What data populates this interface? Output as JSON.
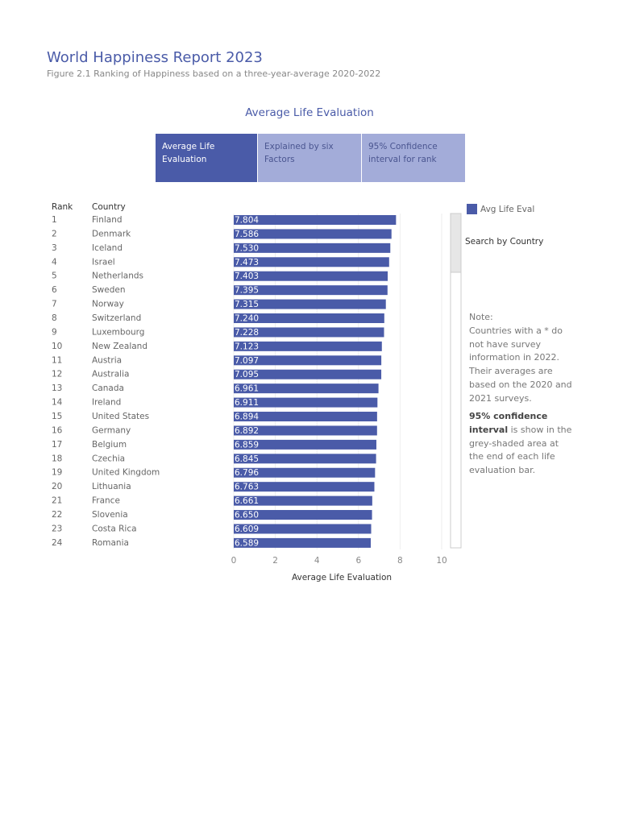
{
  "header": {
    "title": "World Happiness Report 2023",
    "subtitle": "Figure 2.1 Ranking of Happiness based on a three-year-average 2020-2022"
  },
  "tabs": [
    "Average Life Evaluation",
    "Explained by six Factors",
    "95% Confidence interval for rank"
  ],
  "search_label": "Search by Country",
  "note": {
    "heading": "Note:",
    "text": "Countries with a * do not have survey information in 2022. Their averages are based on the 2020 and 2021 surveys.",
    "ci_bold": "95% confidence interval",
    "ci_text": "is show in the grey-shaded area at the end of each life evaluation bar."
  },
  "chart_data": {
    "type": "bar",
    "orientation": "horizontal",
    "title": "Average Life Evaluation",
    "x_label": "Average Life Evaluation",
    "rank_header": "Rank",
    "country_header": "Country",
    "ranks": [
      1,
      2,
      3,
      4,
      5,
      6,
      7,
      8,
      9,
      10,
      11,
      12,
      13,
      14,
      15,
      16,
      17,
      18,
      19,
      20,
      21,
      22,
      23,
      24
    ],
    "categories": [
      "Finland",
      "Denmark",
      "Iceland",
      "Israel",
      "Netherlands",
      "Sweden",
      "Norway",
      "Switzerland",
      "Luxembourg",
      "New Zealand",
      "Austria",
      "Australia",
      "Canada",
      "Ireland",
      "United States",
      "Germany",
      "Belgium",
      "Czechia",
      "United Kingdom",
      "Lithuania",
      "France",
      "Slovenia",
      "Costa Rica",
      "Romania"
    ],
    "series": [
      {
        "name": "Avg Life Eval",
        "color": "#4a5ba8",
        "values": [
          7.804,
          7.586,
          7.53,
          7.473,
          7.403,
          7.395,
          7.315,
          7.24,
          7.228,
          7.123,
          7.097,
          7.095,
          6.961,
          6.911,
          6.894,
          6.892,
          6.859,
          6.845,
          6.796,
          6.763,
          6.661,
          6.65,
          6.609,
          6.589
        ],
        "value_labels": [
          "7.804",
          "7.586",
          "7.530",
          "7.473",
          "7.403",
          "7.395",
          "7.315",
          "7.240",
          "7.228",
          "7.123",
          "7.097",
          "7.095",
          "6.961",
          "6.911",
          "6.894",
          "6.892",
          "6.859",
          "6.845",
          "6.796",
          "6.763",
          "6.661",
          "6.650",
          "6.609",
          "6.589"
        ]
      }
    ],
    "xlim": [
      0,
      10
    ],
    "xticks": [
      0,
      2,
      4,
      6,
      8,
      10
    ],
    "grid": true
  }
}
